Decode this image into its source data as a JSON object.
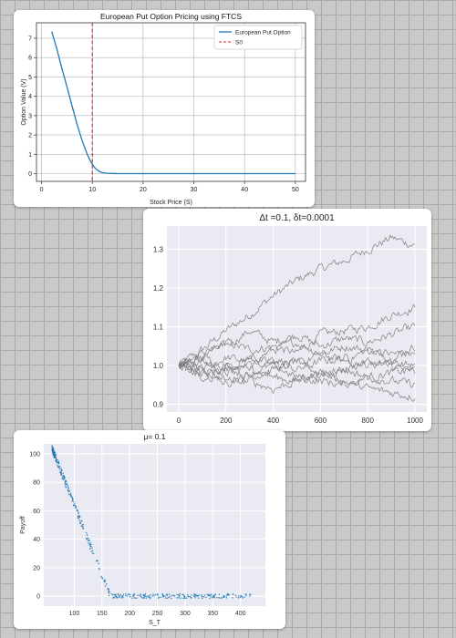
{
  "chart_data": [
    {
      "type": "line",
      "title": "European Put Option Pricing using FTCS",
      "xlabel": "Stock Price (S)",
      "ylabel": "Option Value (V)",
      "xlim": [
        -1,
        52
      ],
      "ylim": [
        -0.4,
        7.8
      ],
      "xticks": [
        0,
        10,
        20,
        30,
        40,
        50
      ],
      "yticks": [
        0,
        1,
        2,
        3,
        4,
        5,
        6,
        7
      ],
      "grid": true,
      "legend": "top-right",
      "series": [
        {
          "name": "European Put Option",
          "color": "#1f77b4",
          "x": [
            2,
            3,
            4,
            5,
            6,
            7,
            8,
            9,
            9.5,
            10,
            10.5,
            11,
            11.5,
            12,
            13,
            14,
            15,
            20,
            30,
            40,
            50
          ],
          "y": [
            7.35,
            6.45,
            5.45,
            4.5,
            3.5,
            2.55,
            1.7,
            1.0,
            0.72,
            0.48,
            0.3,
            0.18,
            0.1,
            0.05,
            0.02,
            0.01,
            0,
            0,
            0,
            0,
            0
          ]
        }
      ],
      "vlines": [
        {
          "name": "S0",
          "x": 10,
          "color": "#d62728",
          "style": "dashed"
        }
      ]
    },
    {
      "type": "line",
      "title": "Δt =0.1, δt=0.0001",
      "xlabel": "",
      "ylabel": "",
      "xlim": [
        -50,
        1050
      ],
      "ylim": [
        0.88,
        1.36
      ],
      "xticks": [
        0,
        200,
        400,
        600,
        800,
        1000
      ],
      "ytick_labels": [
        "0.9",
        "1.0",
        "1.1",
        "1.2",
        "1.3"
      ],
      "grid": true,
      "style": "seaborn-darkgrid",
      "line_color": "#777777",
      "x_step": 100,
      "paths": [
        [
          1.0,
          1.04,
          1.09,
          1.13,
          1.18,
          1.22,
          1.25,
          1.27,
          1.3,
          1.33,
          1.31
        ],
        [
          1.0,
          1.02,
          1.06,
          1.04,
          1.05,
          1.03,
          1.08,
          1.09,
          1.1,
          1.13,
          1.15
        ],
        [
          1.0,
          1.03,
          1.05,
          1.09,
          1.06,
          1.08,
          1.05,
          1.07,
          1.06,
          1.08,
          1.1
        ],
        [
          1.0,
          0.99,
          1.02,
          1.01,
          1.04,
          1.06,
          1.03,
          1.05,
          1.04,
          1.02,
          1.05
        ],
        [
          1.0,
          1.01,
          0.98,
          1.0,
          1.02,
          1.0,
          1.03,
          1.01,
          1.04,
          1.03,
          1.03
        ],
        [
          1.0,
          0.98,
          0.99,
          1.02,
          1.0,
          0.99,
          1.01,
          1.02,
          1.0,
          1.01,
          1.0
        ],
        [
          1.0,
          1.02,
          1.0,
          0.97,
          0.99,
          1.01,
          0.98,
          0.99,
          1.01,
          1.0,
          0.98
        ],
        [
          1.0,
          0.97,
          0.99,
          1.0,
          0.97,
          0.96,
          0.98,
          0.99,
          0.97,
          0.98,
          0.99
        ],
        [
          1.0,
          0.99,
          0.96,
          0.98,
          1.0,
          0.97,
          0.96,
          0.95,
          0.97,
          0.96,
          0.95
        ],
        [
          1.0,
          0.98,
          0.95,
          0.96,
          0.94,
          0.96,
          0.98,
          0.96,
          0.94,
          0.93,
          0.92
        ]
      ]
    },
    {
      "type": "scatter",
      "title": "μ= 0.1",
      "xlabel": "S_T",
      "ylabel": "Payoff",
      "xlim": [
        45,
        445
      ],
      "ylim": [
        -7,
        107
      ],
      "xticks": [
        100,
        150,
        200,
        250,
        300,
        350,
        400
      ],
      "yticks": [
        0,
        20,
        40,
        60,
        80,
        100
      ],
      "grid": true,
      "style": "seaborn-darkgrid",
      "color": "#1f77b4",
      "strike": 165,
      "x_range": [
        60,
        420
      ],
      "point_count": 420
    }
  ]
}
